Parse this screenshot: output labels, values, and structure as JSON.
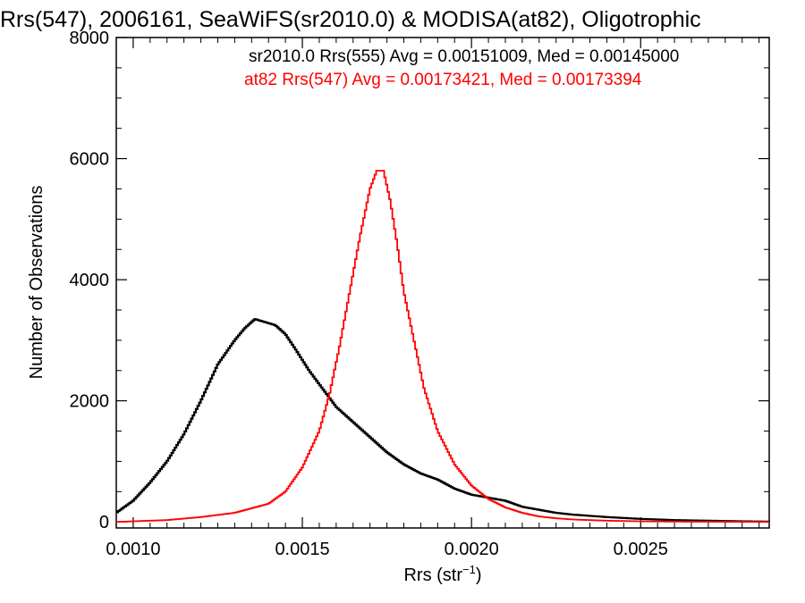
{
  "chart_data": {
    "type": "line",
    "title": "Rrs(547), 2006161, SeaWiFS(sr2010.0) & MODISA(at82), Oligotrophic",
    "xlabel": "Rrs (str",
    "xlabel_sup": "−1",
    "xlabel_close": ")",
    "ylabel": "Number of Observations",
    "xlim": [
      0.00095,
      0.00288
    ],
    "ylim": [
      -100,
      8000
    ],
    "x_ticks": [
      {
        "value": 0.001,
        "label": "0.0010"
      },
      {
        "value": 0.0015,
        "label": "0.0015"
      },
      {
        "value": 0.002,
        "label": "0.0020"
      },
      {
        "value": 0.0025,
        "label": "0.0025"
      }
    ],
    "y_ticks": [
      {
        "value": 0,
        "label": "0"
      },
      {
        "value": 2000,
        "label": "2000"
      },
      {
        "value": 4000,
        "label": "4000"
      },
      {
        "value": 6000,
        "label": "6000"
      },
      {
        "value": 8000,
        "label": "8000"
      }
    ],
    "legend_placement": "top-right",
    "series": [
      {
        "legend": "sr2010.0 Rrs(555) Avg = 0.00151009, Med = 0.00145000",
        "color": "#000000",
        "x": [
          0.00095,
          0.001,
          0.00105,
          0.0011,
          0.00115,
          0.0012,
          0.00125,
          0.0013,
          0.00133,
          0.00136,
          0.00139,
          0.00142,
          0.00145,
          0.00148,
          0.00152,
          0.00156,
          0.0016,
          0.00165,
          0.0017,
          0.00175,
          0.0018,
          0.00185,
          0.0019,
          0.00195,
          0.002,
          0.00205,
          0.0021,
          0.00215,
          0.0022,
          0.00225,
          0.0023,
          0.00235,
          0.0024,
          0.0025,
          0.0026,
          0.0027,
          0.0028,
          0.00288
        ],
        "y": [
          150,
          350,
          650,
          1000,
          1450,
          2000,
          2600,
          3000,
          3200,
          3350,
          3300,
          3250,
          3100,
          2850,
          2500,
          2200,
          1900,
          1650,
          1400,
          1150,
          950,
          800,
          700,
          550,
          450,
          400,
          350,
          250,
          200,
          150,
          120,
          100,
          80,
          50,
          30,
          20,
          10,
          5
        ]
      },
      {
        "legend": "at82 Rrs(547) Avg = 0.00173421, Med = 0.00173394",
        "color": "#ff0000",
        "x": [
          0.00095,
          0.001,
          0.0011,
          0.0012,
          0.0013,
          0.0014,
          0.00145,
          0.0015,
          0.00155,
          0.00158,
          0.00161,
          0.00164,
          0.00167,
          0.0017,
          0.00172,
          0.00174,
          0.00176,
          0.00178,
          0.0018,
          0.00183,
          0.00186,
          0.0019,
          0.00195,
          0.002,
          0.00205,
          0.0021,
          0.00215,
          0.0022,
          0.00225,
          0.0023,
          0.0024,
          0.0025,
          0.0026,
          0.0027,
          0.00288
        ],
        "y": [
          0,
          10,
          30,
          80,
          150,
          300,
          500,
          900,
          1500,
          2100,
          2900,
          3800,
          4700,
          5500,
          5800,
          5800,
          5300,
          4600,
          3800,
          3000,
          2200,
          1500,
          950,
          600,
          380,
          240,
          150,
          90,
          60,
          40,
          20,
          10,
          5,
          3,
          0
        ]
      }
    ]
  }
}
